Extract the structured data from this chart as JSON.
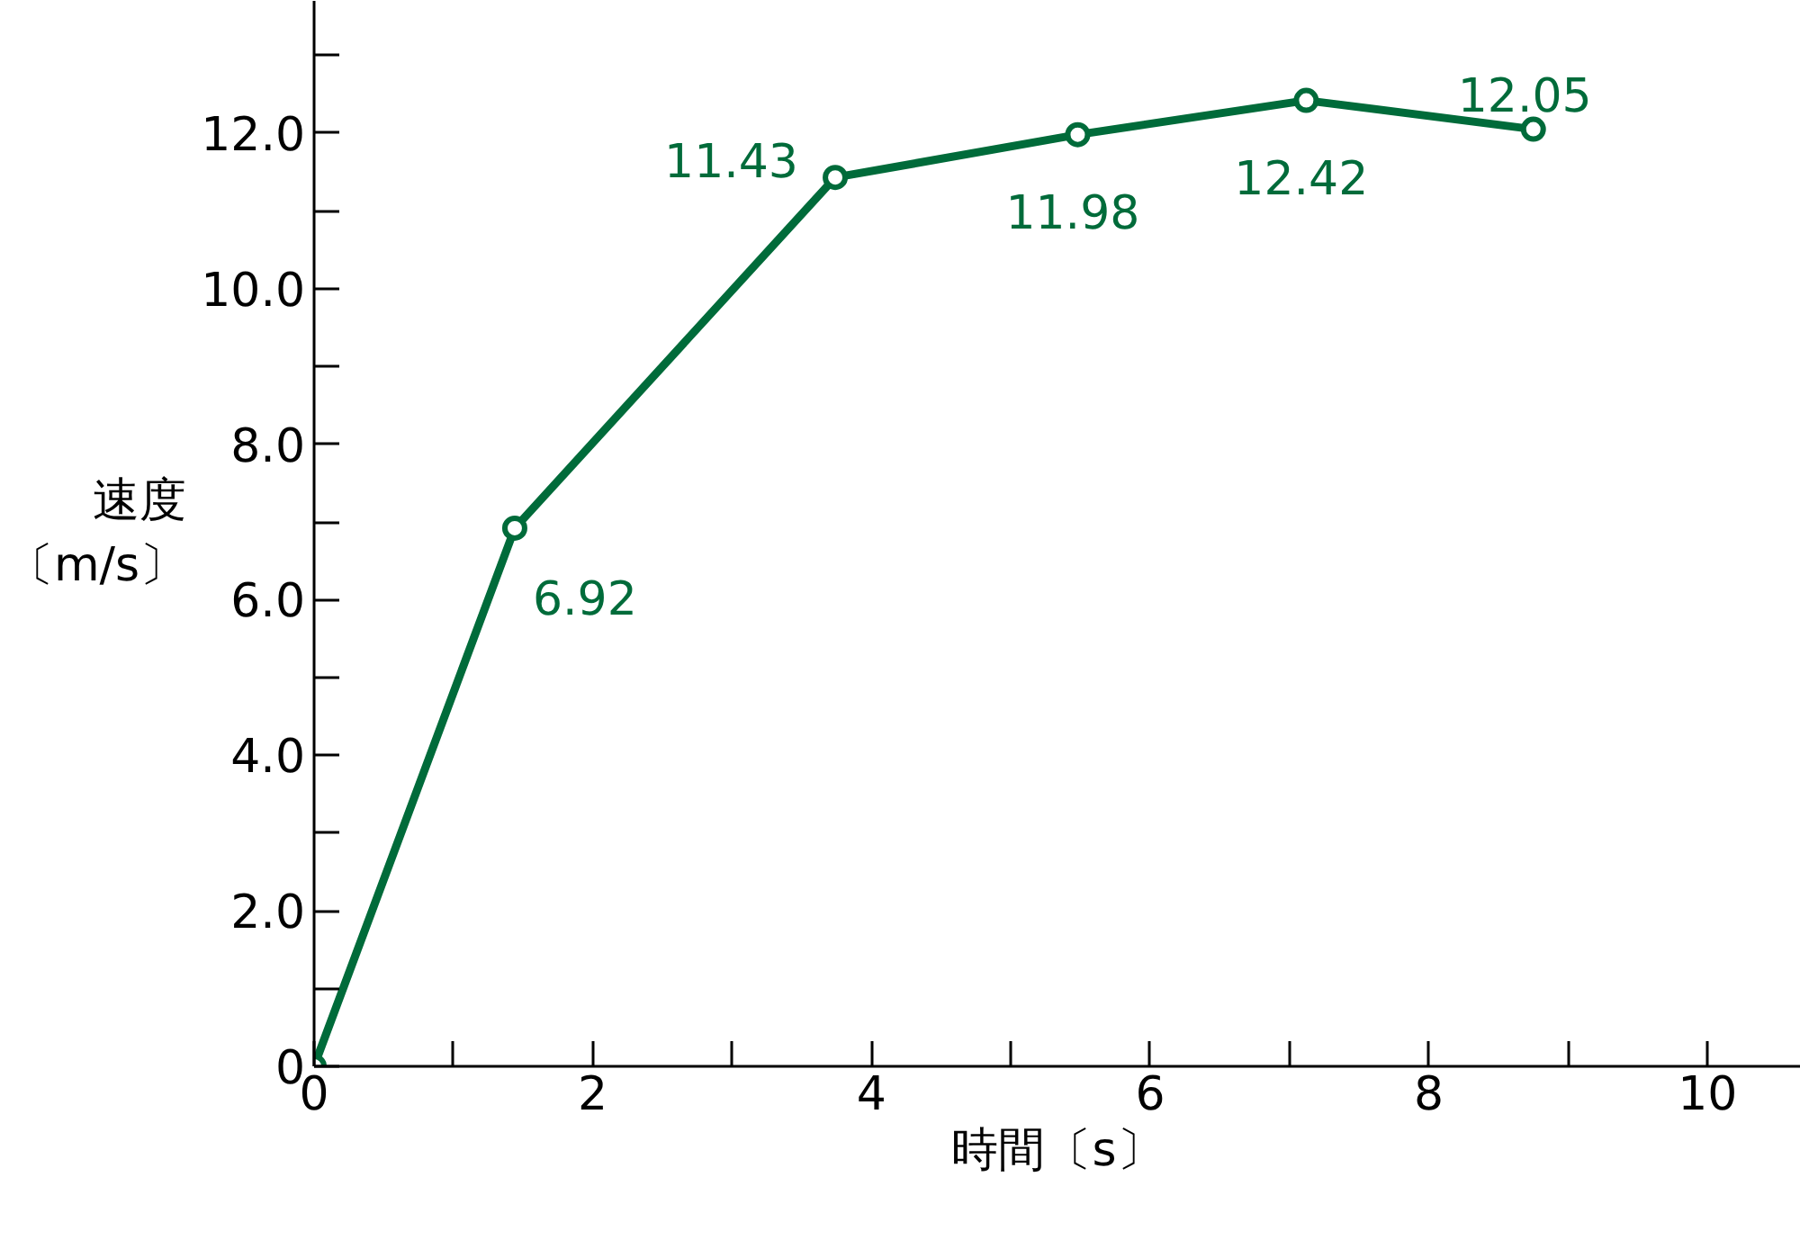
{
  "chart_data": {
    "type": "line",
    "xlabel": "時間〔s〕",
    "ylabel": "速度〔m/s〕",
    "x": [
      0,
      1.44,
      3.74,
      5.48,
      7.12,
      8.75
    ],
    "series": [
      {
        "color": "#006b3a",
        "values": [
          0,
          6.92,
          11.43,
          11.98,
          12.42,
          12.05
        ],
        "value_labels": [
          null,
          "6.92",
          "11.43",
          "11.98",
          "12.42",
          "12.05"
        ]
      }
    ],
    "xlim": [
      0,
      10.67
    ],
    "ylim": [
      0,
      13.7
    ],
    "xticks": [
      0,
      {
        "value": 1,
        "label": null
      },
      2,
      {
        "value": 3,
        "label": null
      },
      4,
      {
        "value": 5,
        "label": null
      },
      6,
      {
        "value": 7,
        "label": null
      },
      8,
      {
        "value": 9,
        "label": null
      },
      10
    ],
    "yticks": [
      {
        "value": 0,
        "label": "0"
      },
      {
        "value": 1,
        "label": null
      },
      {
        "value": 2,
        "label": "2.0"
      },
      {
        "value": 3,
        "label": null
      },
      {
        "value": 4,
        "label": "4.0"
      },
      {
        "value": 5,
        "label": null
      },
      {
        "value": 6,
        "label": "6.0"
      },
      {
        "value": 7,
        "label": null
      },
      {
        "value": 8,
        "label": "8.0"
      },
      {
        "value": 9,
        "label": null
      },
      {
        "value": 10,
        "label": "10.0"
      },
      {
        "value": 11,
        "label": null
      },
      {
        "value": 12,
        "label": "12.0"
      },
      {
        "value": 13,
        "label": null
      }
    ],
    "grid": false,
    "marker": "circle",
    "line_style": "solid"
  }
}
